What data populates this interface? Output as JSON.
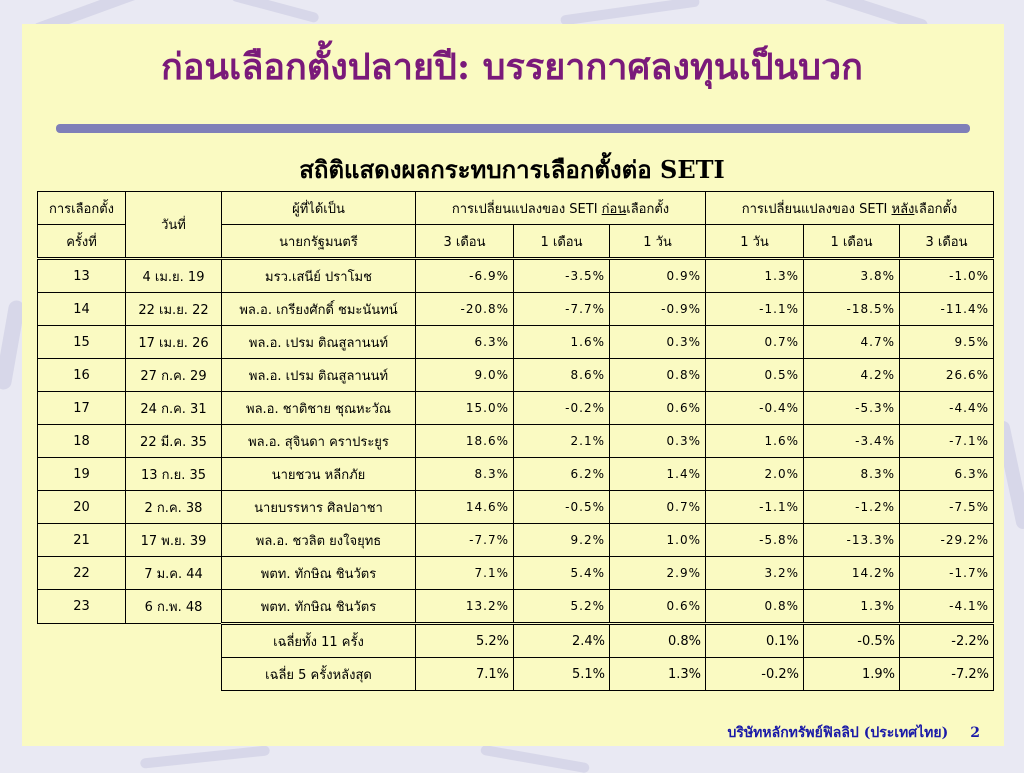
{
  "title": "ก่อนเลือกตั้งปลายปี: บรรยากาศลงทุนเป็นบวก",
  "subtitle": "สถิติแสดงผลกระทบการเลือกตั้งต่อ SETI",
  "table": {
    "headers": {
      "election_line1": "การเลือกตั้ง",
      "election_line2": "ครั้งที่",
      "date": "วันที่",
      "pm_line1": "ผู้ที่ได้เป็น",
      "pm_line2": "นายกรัฐมนตรี",
      "before_prefix": "การเปลี่ยนแปลงของ SETI ",
      "before_emph": "ก่อน",
      "before_suffix": "เลือกตั้ง",
      "after_prefix": "การเปลี่ยนแปลงของ SETI ",
      "after_emph": "หลัง",
      "after_suffix": "เลือกตั้ง",
      "periods": [
        "3 เดือน",
        "1 เดือน",
        "1 วัน",
        "1 วัน",
        "1 เดือน",
        "3 เดือน"
      ]
    },
    "rows": [
      {
        "no": "13",
        "date": "4 เม.ย. 19",
        "pm": "มรว.เสนีย์ ปราโมช",
        "values": [
          "-6.9%",
          "-3.5%",
          "0.9%",
          "1.3%",
          "3.8%",
          "-1.0%"
        ]
      },
      {
        "no": "14",
        "date": "22 เม.ย. 22",
        "pm": "พล.อ. เกรียงศักดิ์ ชมะนันทน์",
        "values": [
          "-20.8%",
          "-7.7%",
          "-0.9%",
          "-1.1%",
          "-18.5%",
          "-11.4%"
        ]
      },
      {
        "no": "15",
        "date": "17 เม.ย. 26",
        "pm": "พล.อ. เปรม ติณสูลานนท์",
        "values": [
          "6.3%",
          "1.6%",
          "0.3%",
          "0.7%",
          "4.7%",
          "9.5%"
        ]
      },
      {
        "no": "16",
        "date": "27 ก.ค. 29",
        "pm": "พล.อ. เปรม ติณสูลานนท์",
        "values": [
          "9.0%",
          "8.6%",
          "0.8%",
          "0.5%",
          "4.2%",
          "26.6%"
        ]
      },
      {
        "no": "17",
        "date": "24 ก.ค. 31",
        "pm": "พล.อ. ชาติชาย ชุณหะวัณ",
        "values": [
          "15.0%",
          "-0.2%",
          "0.6%",
          "-0.4%",
          "-5.3%",
          "-4.4%"
        ]
      },
      {
        "no": "18",
        "date": "22 มี.ค. 35",
        "pm": "พล.อ. สุจินดา คราประยูร",
        "values": [
          "18.6%",
          "2.1%",
          "0.3%",
          "1.6%",
          "-3.4%",
          "-7.1%"
        ]
      },
      {
        "no": "19",
        "date": "13 ก.ย. 35",
        "pm": "นายชวน หลีกภัย",
        "values": [
          "8.3%",
          "6.2%",
          "1.4%",
          "2.0%",
          "8.3%",
          "6.3%"
        ]
      },
      {
        "no": "20",
        "date": "2 ก.ค. 38",
        "pm": "นายบรรหาร ศิลปอาชา",
        "values": [
          "14.6%",
          "-0.5%",
          "0.7%",
          "-1.1%",
          "-1.2%",
          "-7.5%"
        ]
      },
      {
        "no": "21",
        "date": "17 พ.ย. 39",
        "pm": "พล.อ. ชวลิต ยงใจยุทธ",
        "values": [
          "-7.7%",
          "9.2%",
          "1.0%",
          "-5.8%",
          "-13.3%",
          "-29.2%"
        ]
      },
      {
        "no": "22",
        "date": "7 ม.ค. 44",
        "pm": "พตท. ทักษิณ ชินวัตร",
        "values": [
          "7.1%",
          "5.4%",
          "2.9%",
          "3.2%",
          "14.2%",
          "-1.7%"
        ]
      },
      {
        "no": "23",
        "date": "6 ก.พ. 48",
        "pm": "พตท. ทักษิณ ชินวัตร",
        "values": [
          "13.2%",
          "5.2%",
          "0.6%",
          "0.8%",
          "1.3%",
          "-4.1%"
        ]
      }
    ],
    "summary": [
      {
        "label": "เฉลี่ยทั้ง 11 ครั้ง",
        "values": [
          "5.2%",
          "2.4%",
          "0.8%",
          "0.1%",
          "-0.5%",
          "-2.2%"
        ]
      },
      {
        "label": "เฉลี่ย 5 ครั้งหลังสุด",
        "values": [
          "7.1%",
          "5.1%",
          "1.3%",
          "-0.2%",
          "1.9%",
          "-7.2%"
        ]
      }
    ]
  },
  "footer": {
    "company": "บริษัทหลักทรัพย์ฟิลลิป (ประเทศไทย)",
    "page_number": "2"
  },
  "colors": {
    "title": "#7a1a7a",
    "slide_background": "#fafac2",
    "frame_background": "#e9e9f3",
    "rule": "#7f7fb8",
    "footer": "#1a1aa8"
  }
}
